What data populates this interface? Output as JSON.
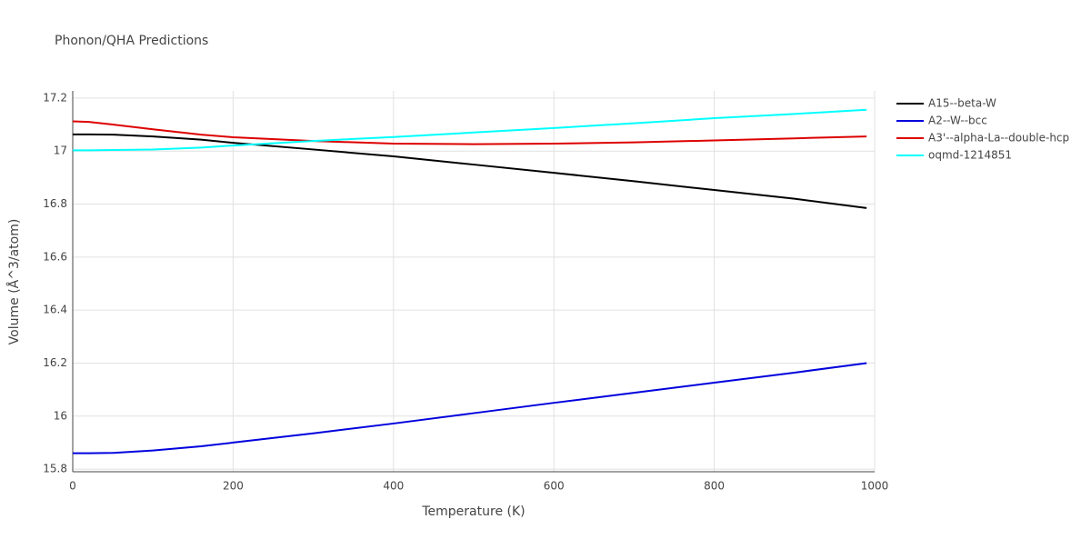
{
  "chart_data": {
    "type": "line",
    "title": "Phonon/QHA Predictions",
    "x_label": "Temperature (K)",
    "y_label": "Volume (Å^3/atom)",
    "x": [
      0,
      20,
      50,
      100,
      160,
      200,
      300,
      400,
      500,
      600,
      700,
      800,
      900,
      990
    ],
    "series": [
      {
        "name": "A15--beta-W",
        "color": "#000000",
        "values": [
          17.063,
          17.063,
          17.062,
          17.055,
          17.043,
          17.031,
          17.006,
          16.98,
          16.949,
          16.918,
          16.886,
          16.853,
          16.82,
          16.785
        ]
      },
      {
        "name": "A2--W--bcc",
        "color": "#0000dd",
        "values": [
          15.86,
          15.86,
          15.861,
          15.87,
          15.886,
          15.9,
          15.935,
          15.972,
          16.011,
          16.05,
          16.088,
          16.126,
          16.164,
          16.2
        ]
      },
      {
        "name": "A3'--alpha-La--double-hcp",
        "color": "#dd0000",
        "values": [
          17.112,
          17.11,
          17.1,
          17.082,
          17.062,
          17.052,
          17.038,
          17.028,
          17.026,
          17.028,
          17.033,
          17.04,
          17.048,
          17.055
        ]
      },
      {
        "name": "oqmd-1214851",
        "color": "#00ffff",
        "values": [
          17.003,
          17.003,
          17.004,
          17.006,
          17.013,
          17.021,
          17.038,
          17.053,
          17.07,
          17.087,
          17.105,
          17.124,
          17.14,
          17.156
        ]
      }
    ],
    "xlim": [
      0,
      1000
    ],
    "xticks": [
      0,
      200,
      400,
      600,
      800,
      1000
    ],
    "ylim": [
      15.79,
      17.227
    ],
    "yticks": [
      15.8,
      16,
      16.2,
      16.4,
      16.6,
      16.8,
      17,
      17.2
    ],
    "grid": true,
    "legend": "right"
  }
}
